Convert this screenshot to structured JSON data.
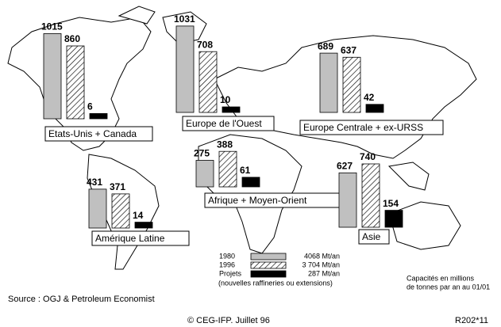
{
  "chart_data": {
    "type": "bar",
    "categories": [
      "Etats-Unis + Canada",
      "Europe de l'Ouest",
      "Europe Centrale + ex-URSS",
      "Afrique + Moyen-Orient",
      "Amérique Latine",
      "Asie"
    ],
    "series": [
      {
        "name": "1980",
        "color": "#c0c0c0",
        "pattern": "solid",
        "total": "4068 Mt/an",
        "values": [
          1015,
          1031,
          689,
          275,
          431,
          627
        ]
      },
      {
        "name": "1996",
        "color": "#ffffff",
        "pattern": "hatch",
        "total": "3 704 Mt/an",
        "values": [
          860,
          708,
          637,
          388,
          371,
          740
        ]
      },
      {
        "name": "Projets",
        "color": "#000000",
        "pattern": "solid",
        "total": "287 Mt/an",
        "values": [
          6,
          10,
          42,
          61,
          14,
          154
        ]
      }
    ],
    "legend_note": "(nouvelles raffineries ou extensions)",
    "note": [
      "Capacités en millions",
      "de tonnes par an au 01/01"
    ],
    "source": "Source : OGJ & Petroleum Economist",
    "copyright": "© CEG-IFP.  Juillet  96",
    "reference": "R202*11"
  }
}
